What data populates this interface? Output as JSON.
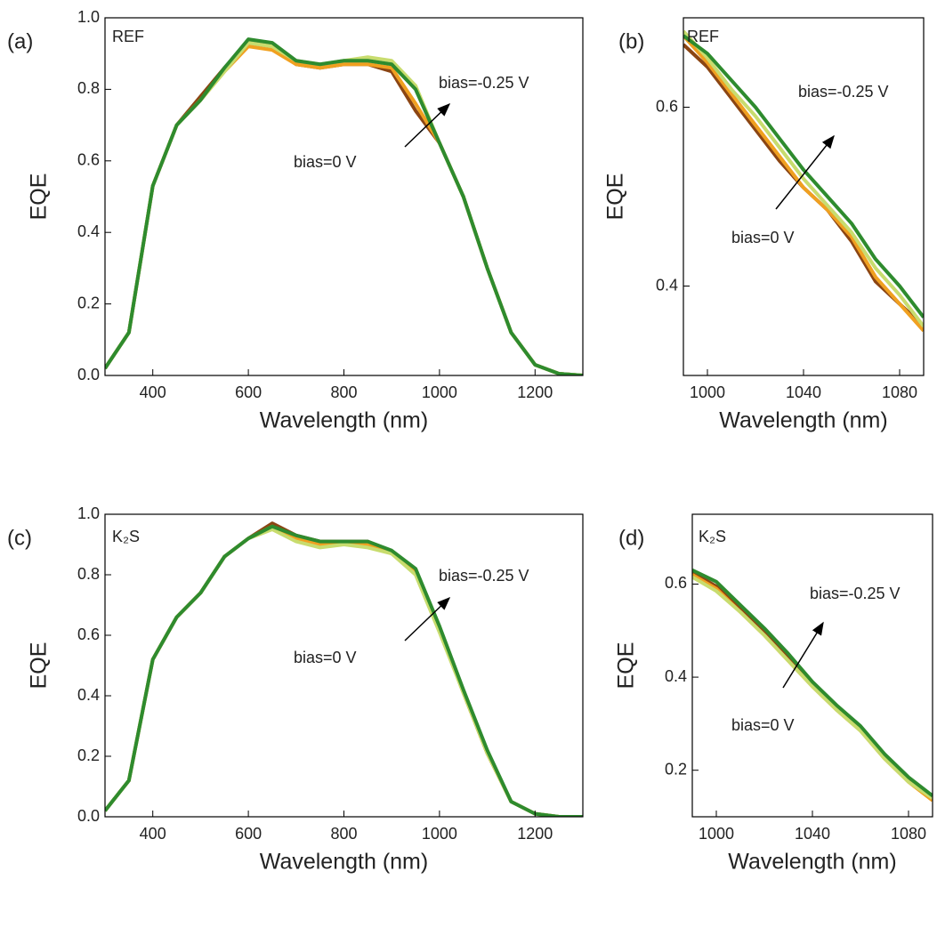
{
  "chart_data": [
    {
      "type": "line",
      "panel_label": "(a)",
      "sample_label": "REF",
      "x_label": "Wavelength (nm)",
      "y_label": "EQE",
      "annotations": [
        "bias=-0.25 V",
        "bias=0 V"
      ],
      "x": [
        300,
        350,
        400,
        450,
        500,
        550,
        600,
        650,
        700,
        750,
        800,
        850,
        900,
        950,
        1000,
        1050,
        1100,
        1150,
        1200,
        1250,
        1300
      ],
      "series": [
        {
          "color": "#8b4513",
          "values": [
            0.02,
            0.12,
            0.53,
            0.7,
            0.78,
            0.86,
            0.93,
            0.92,
            0.87,
            0.86,
            0.87,
            0.87,
            0.85,
            0.74,
            0.65,
            0.5,
            0.3,
            0.12,
            0.03,
            0.005,
            0.0
          ]
        },
        {
          "color": "#f0a020",
          "values": [
            0.02,
            0.12,
            0.53,
            0.7,
            0.77,
            0.85,
            0.92,
            0.91,
            0.87,
            0.86,
            0.87,
            0.87,
            0.86,
            0.76,
            0.65,
            0.5,
            0.3,
            0.12,
            0.03,
            0.005,
            0.0
          ]
        },
        {
          "color": "#c8dc6e",
          "values": [
            0.02,
            0.12,
            0.53,
            0.7,
            0.77,
            0.85,
            0.93,
            0.92,
            0.88,
            0.87,
            0.88,
            0.89,
            0.88,
            0.81,
            0.65,
            0.5,
            0.3,
            0.12,
            0.03,
            0.005,
            0.0
          ]
        },
        {
          "color": "#2e8b2e",
          "values": [
            0.02,
            0.12,
            0.53,
            0.7,
            0.77,
            0.86,
            0.94,
            0.93,
            0.88,
            0.87,
            0.88,
            0.88,
            0.87,
            0.8,
            0.65,
            0.5,
            0.3,
            0.12,
            0.03,
            0.005,
            0.0
          ]
        }
      ],
      "xlim": [
        300,
        1300
      ],
      "xticks": [
        400,
        600,
        800,
        1000,
        1200
      ],
      "ylim": [
        0,
        1
      ],
      "yticks": [
        {
          "value": 0,
          "label": "0.0"
        },
        0.2,
        0.4,
        0.6,
        0.8,
        {
          "value": 1,
          "label": "1.0"
        }
      ]
    },
    {
      "type": "line",
      "panel_label": "(b)",
      "sample_label": "REF",
      "x_label": "Wavelength (nm)",
      "y_label": "EQE",
      "annotations": [
        "bias=-0.25 V",
        "bias=0 V"
      ],
      "x": [
        990,
        1000,
        1010,
        1020,
        1030,
        1040,
        1050,
        1060,
        1070,
        1080,
        1090
      ],
      "series": [
        {
          "color": "#8b4513",
          "values": [
            0.67,
            0.645,
            0.61,
            0.575,
            0.54,
            0.51,
            0.485,
            0.45,
            0.405,
            0.38,
            0.355
          ]
        },
        {
          "color": "#f0a020",
          "values": [
            0.68,
            0.65,
            0.615,
            0.58,
            0.545,
            0.51,
            0.485,
            0.455,
            0.41,
            0.38,
            0.35
          ]
        },
        {
          "color": "#c8dc6e",
          "values": [
            0.685,
            0.655,
            0.62,
            0.59,
            0.555,
            0.52,
            0.49,
            0.46,
            0.42,
            0.39,
            0.355
          ]
        },
        {
          "color": "#2e8b2e",
          "values": [
            0.68,
            0.66,
            0.63,
            0.6,
            0.565,
            0.53,
            0.5,
            0.47,
            0.43,
            0.4,
            0.365
          ]
        }
      ],
      "xlim": [
        990,
        1090
      ],
      "xticks": [
        1000,
        1040,
        1080
      ],
      "ylim": [
        0.3,
        0.7
      ],
      "yticks": [
        0.4,
        0.6
      ]
    },
    {
      "type": "line",
      "panel_label": "(c)",
      "sample_label": "K₂S",
      "x_label": "Wavelength (nm)",
      "y_label": "EQE",
      "annotations": [
        "bias=-0.25 V",
        "bias=0 V"
      ],
      "x": [
        300,
        350,
        400,
        450,
        500,
        550,
        600,
        650,
        700,
        750,
        800,
        850,
        900,
        950,
        1000,
        1050,
        1100,
        1150,
        1200,
        1250,
        1300
      ],
      "series": [
        {
          "color": "#8b4513",
          "values": [
            0.02,
            0.12,
            0.52,
            0.66,
            0.74,
            0.86,
            0.92,
            0.97,
            0.93,
            0.91,
            0.91,
            0.91,
            0.87,
            0.81,
            0.62,
            0.41,
            0.21,
            0.05,
            0.01,
            0.0,
            0.0
          ]
        },
        {
          "color": "#f0a020",
          "values": [
            0.02,
            0.12,
            0.52,
            0.66,
            0.74,
            0.86,
            0.92,
            0.96,
            0.92,
            0.9,
            0.9,
            0.9,
            0.87,
            0.81,
            0.62,
            0.41,
            0.21,
            0.05,
            0.01,
            0.0,
            0.0
          ]
        },
        {
          "color": "#c8dc6e",
          "values": [
            0.02,
            0.12,
            0.52,
            0.66,
            0.74,
            0.86,
            0.92,
            0.95,
            0.91,
            0.89,
            0.9,
            0.89,
            0.87,
            0.8,
            0.61,
            0.41,
            0.21,
            0.05,
            0.01,
            0.0,
            0.0
          ]
        },
        {
          "color": "#2e8b2e",
          "values": [
            0.02,
            0.12,
            0.52,
            0.66,
            0.74,
            0.86,
            0.92,
            0.96,
            0.93,
            0.91,
            0.91,
            0.91,
            0.88,
            0.82,
            0.63,
            0.42,
            0.22,
            0.05,
            0.01,
            0.0,
            0.0
          ]
        }
      ],
      "xlim": [
        300,
        1300
      ],
      "xticks": [
        400,
        600,
        800,
        1000,
        1200
      ],
      "ylim": [
        0,
        1
      ],
      "yticks": [
        {
          "value": 0,
          "label": "0.0"
        },
        0.2,
        0.4,
        0.6,
        0.8,
        {
          "value": 1,
          "label": "1.0"
        }
      ]
    },
    {
      "type": "line",
      "panel_label": "(d)",
      "sample_label": "K₂S",
      "x_label": "Wavelength (nm)",
      "y_label": "EQE",
      "annotations": [
        "bias=-0.25 V",
        "bias=0 V"
      ],
      "x": [
        990,
        1000,
        1010,
        1020,
        1030,
        1040,
        1050,
        1060,
        1070,
        1080,
        1090
      ],
      "series": [
        {
          "color": "#8b4513",
          "values": [
            0.625,
            0.595,
            0.545,
            0.495,
            0.44,
            0.385,
            0.335,
            0.29,
            0.23,
            0.18,
            0.14
          ]
        },
        {
          "color": "#f0a020",
          "values": [
            0.62,
            0.59,
            0.54,
            0.49,
            0.435,
            0.38,
            0.33,
            0.285,
            0.225,
            0.175,
            0.135
          ]
        },
        {
          "color": "#c8dc6e",
          "values": [
            0.615,
            0.585,
            0.54,
            0.49,
            0.435,
            0.38,
            0.33,
            0.285,
            0.225,
            0.175,
            0.14
          ]
        },
        {
          "color": "#2e8b2e",
          "values": [
            0.63,
            0.605,
            0.555,
            0.505,
            0.45,
            0.39,
            0.34,
            0.295,
            0.235,
            0.185,
            0.145
          ]
        }
      ],
      "xlim": [
        990,
        1090
      ],
      "xticks": [
        1000,
        1040,
        1080
      ],
      "ylim": [
        0.1,
        0.75
      ],
      "yticks": [
        0.2,
        0.4,
        0.6
      ]
    }
  ]
}
